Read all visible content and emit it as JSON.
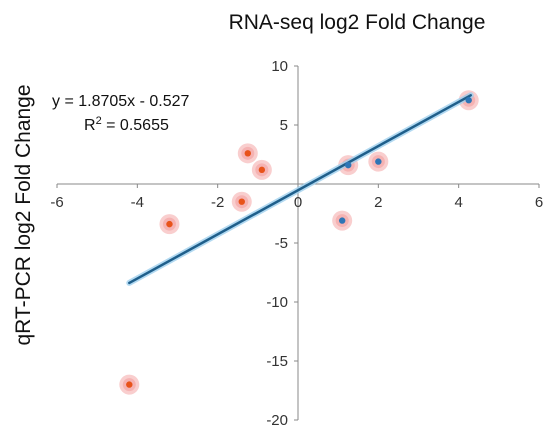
{
  "chart_data": {
    "type": "scatter",
    "title": "RNA-seq log2 Fold Change",
    "xlabel": "",
    "ylabel": "qRT-PCR log2 Fold Change",
    "xlim": [
      -6,
      6
    ],
    "ylim": [
      -20,
      10
    ],
    "x_ticks": [
      "-6",
      "-4",
      "-2",
      "0",
      "2",
      "4",
      "6"
    ],
    "y_ticks": [
      "10",
      "5",
      "0",
      "-5",
      "-10",
      "-15",
      "-20"
    ],
    "grid": false,
    "legend": "none",
    "series": [
      {
        "color": "#2e75b6",
        "points": [
          {
            "x": 1.25,
            "y": 1.6
          },
          {
            "x": 2.0,
            "y": 1.9
          },
          {
            "x": 4.25,
            "y": 7.1
          },
          {
            "x": 1.1,
            "y": -3.1
          }
        ]
      },
      {
        "color": "#e8531a",
        "points": [
          {
            "x": -1.25,
            "y": 2.6
          },
          {
            "x": -0.9,
            "y": 1.2
          },
          {
            "x": -1.4,
            "y": -1.5
          },
          {
            "x": -3.2,
            "y": -3.4
          },
          {
            "x": -4.2,
            "y": -17.0
          }
        ]
      }
    ],
    "trendline": {
      "slope": 1.8705,
      "intercept": -0.527,
      "x_range": [
        -4.2,
        4.3
      ],
      "color": "#1f5f8b",
      "equation": "y = 1.8705x - 0.527",
      "r2_prefix": "R",
      "r2_sup": "2",
      "r2_value": " = 0.5655"
    },
    "glow_color": "#f4a6a6"
  }
}
